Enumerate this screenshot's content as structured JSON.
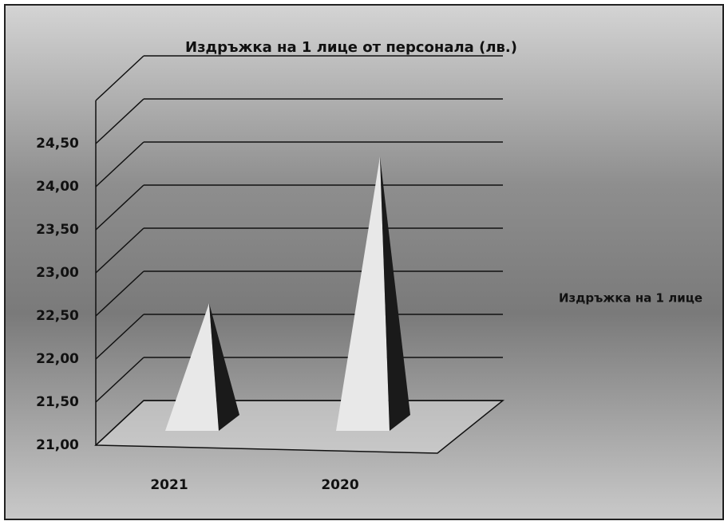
{
  "chart_data": {
    "type": "pyramid3d",
    "title": "Издръжка на 1 лице от персонала (лв.)",
    "categories": [
      "2021",
      "2020"
    ],
    "series": [
      {
        "name": "Издръжка на 1 лице",
        "color": "#e8e8e8",
        "values": [
          22.5,
          24.2
        ]
      }
    ],
    "ylim": [
      21,
      25
    ],
    "yticks": [
      {
        "value": 21,
        "label": "21,00"
      },
      {
        "value": 21.5,
        "label": "21,50"
      },
      {
        "value": 22,
        "label": "22,00"
      },
      {
        "value": 22.5,
        "label": "22,50"
      },
      {
        "value": 23,
        "label": "23,00"
      },
      {
        "value": 23.5,
        "label": "23,50"
      },
      {
        "value": 24,
        "label": "24,00"
      },
      {
        "value": 24.5,
        "label": "24,50"
      }
    ],
    "grid": true,
    "legend": "right"
  }
}
